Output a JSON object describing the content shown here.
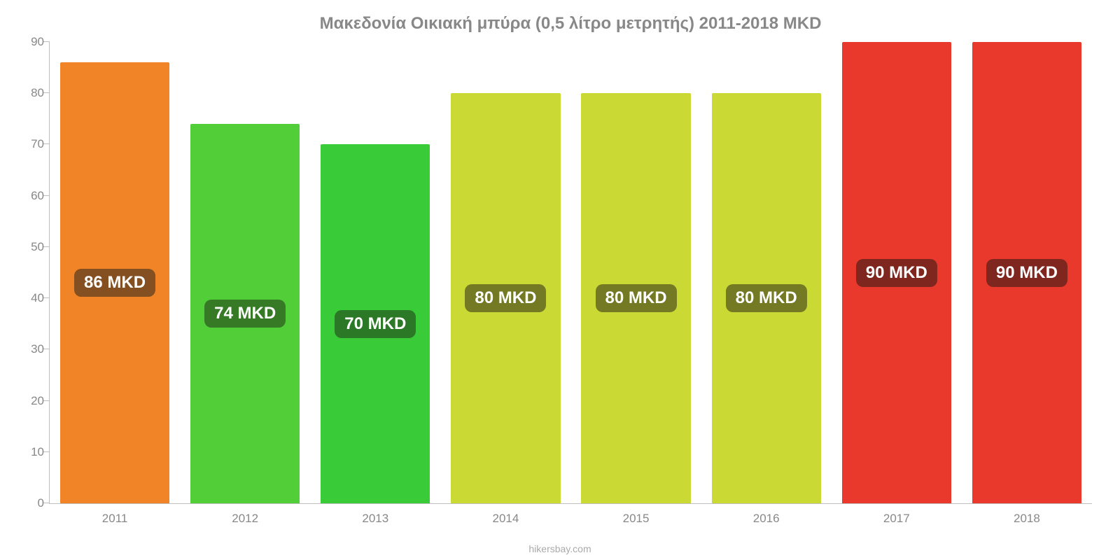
{
  "chart": {
    "type": "bar",
    "title": "Μακεδονία Οικιακή μπύρα (0,5 λίτρο μετρητής) 2011-2018 MKD",
    "title_color": "#888888",
    "title_fontsize": 24,
    "background_color": "#ffffff",
    "axis_line_color": "#bfbfbf",
    "tick_label_color": "#888888",
    "tick_label_fontsize": 17,
    "value_label_fontsize": 24,
    "value_label_text_color": "#ffffff",
    "ylim": [
      0,
      90
    ],
    "yticks": [
      0,
      10,
      20,
      30,
      40,
      50,
      60,
      70,
      80,
      90
    ],
    "bar_width_pct": 84,
    "categories": [
      "2011",
      "2012",
      "2013",
      "2014",
      "2015",
      "2016",
      "2017",
      "2018"
    ],
    "values": [
      86,
      74,
      70,
      80,
      80,
      80,
      90,
      90
    ],
    "value_labels": [
      "86 MKD",
      "74 MKD",
      "70 MKD",
      "80 MKD",
      "80 MKD",
      "80 MKD",
      "90 MKD",
      "90 MKD"
    ],
    "bar_colors": [
      "#f08427",
      "#51ce38",
      "#39cb38",
      "#cad934",
      "#cad934",
      "#cad934",
      "#e9392c",
      "#e9392c"
    ],
    "label_bg_colors": [
      "#845021",
      "#367a26",
      "#2b7926",
      "#747a24",
      "#747a24",
      "#747a24",
      "#7f261f",
      "#7f261f"
    ],
    "attribution": "hikersbay.com",
    "attribution_color": "#aaaaaa"
  }
}
